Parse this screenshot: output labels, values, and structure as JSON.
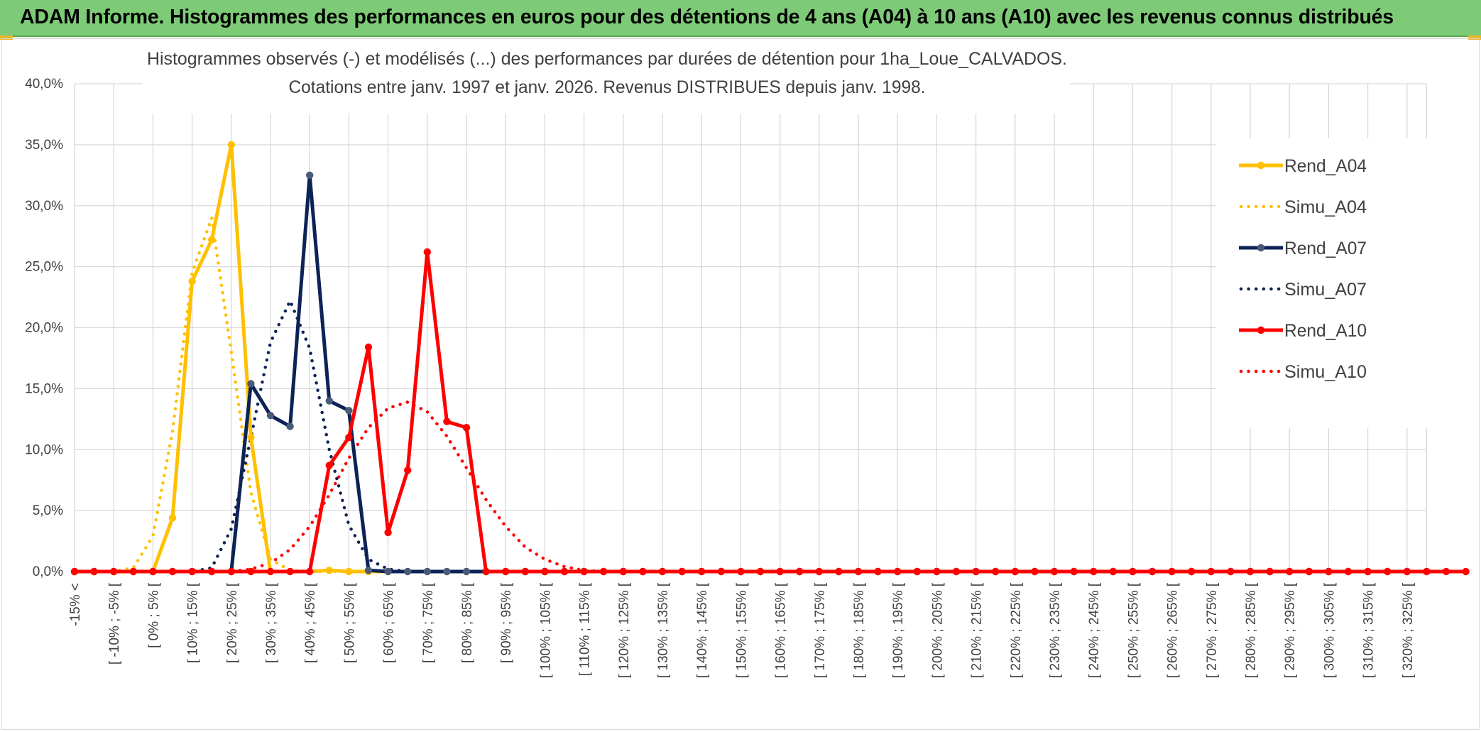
{
  "banner": {
    "title": "ADAM Informe. Histogrammes des performances en euros pour des détentions de 4 ans (A04) à 10 ans (A10) avec les revenus connus distribués"
  },
  "colors": {
    "banner_bg": "#7ecb77",
    "accent": "#e9b52c",
    "A04": "#ffc000",
    "A07": "#0d2357",
    "A10": "#ff0000",
    "grid": "#d9d9d9"
  },
  "chart_data": {
    "type": "line",
    "title_lines": [
      "Histogrammes observés (-) et modélisés (...) des performances par durées de détention pour 1ha_Loue_CALVADOS.",
      "Cotations entre janv. 1997 et janv. 2026. Revenus DISTRIBUES depuis janv. 1998."
    ],
    "ylim": [
      0,
      40
    ],
    "yticks": [
      "0,0%",
      "5,0%",
      "10,0%",
      "15,0%",
      "20,0%",
      "25,0%",
      "30,0%",
      "35,0%",
      "40,0%"
    ],
    "grid": true,
    "legend_position": "right",
    "x_labels": [
      "-15% <",
      "[ -10% ; -5% [",
      "[ 0% ; 5% [",
      "[ 10% ; 15% [",
      "[ 20% ; 25% [",
      "[ 30% ; 35% [",
      "[ 40% ; 45% [",
      "[ 50% ; 55% [",
      "[ 60% ; 65% [",
      "[ 70% ; 75% [",
      "[ 80% ; 85% [",
      "[ 90% ; 95% [",
      "[ 100% ; 105% [",
      "[ 110% ; 115% [",
      "[ 120% ; 125% [",
      "[ 130% ; 135% [",
      "[ 140% ; 145% [",
      "[ 150% ; 155% [",
      "[ 160% ; 165% [",
      "[ 170% ; 175% [",
      "[ 180% ; 185% [",
      "[ 190% ; 195% [",
      "[ 200% ; 205% [",
      "[ 210% ; 215% [",
      "[ 220% ; 225% [",
      "[ 230% ; 235% [",
      "[ 240% ; 245% [",
      "[ 250% ; 255% [",
      "[ 260% ; 265% [",
      "[ 270% ; 275% [",
      "[ 280% ; 285% [",
      "[ 290% ; 295% [",
      "[ 300% ; 305% [",
      "[ 310% ; 315% [",
      "[ 320% ; 325% ["
    ],
    "x_label_step": 2,
    "bins": 70,
    "series": [
      {
        "name": "Rend_A04",
        "style": "solid",
        "color": "#ffc000",
        "values": [
          0,
          0,
          0,
          0,
          0,
          4.4,
          23.8,
          27.2,
          35.0,
          11.0,
          0,
          0,
          0,
          0.1,
          0,
          0,
          0,
          0,
          0,
          0,
          0,
          0,
          0,
          0,
          0,
          0,
          0,
          0,
          0,
          0,
          0,
          0,
          0,
          0,
          0,
          0,
          0,
          0,
          0,
          0,
          0,
          0,
          0,
          0,
          0,
          0,
          0,
          0,
          0,
          0,
          0,
          0,
          0,
          0,
          0,
          0,
          0,
          0,
          0,
          0,
          0,
          0,
          0,
          0,
          0,
          0,
          0,
          0,
          0,
          0
        ]
      },
      {
        "name": "Simu_A04",
        "style": "dotted",
        "color": "#ffc000",
        "values": [
          0,
          0,
          0,
          0.3,
          2.9,
          11.5,
          24.5,
          29.0,
          18.0,
          6.5,
          1.0,
          0.1,
          0,
          0,
          0,
          0,
          0,
          0,
          0,
          0,
          0,
          0,
          0,
          0,
          0,
          0,
          0,
          0,
          0,
          0,
          0,
          0,
          0,
          0,
          0,
          0,
          0,
          0,
          0,
          0,
          0,
          0,
          0,
          0,
          0,
          0,
          0,
          0,
          0,
          0,
          0,
          0,
          0,
          0,
          0,
          0,
          0,
          0,
          0,
          0,
          0,
          0,
          0,
          0,
          0,
          0,
          0,
          0,
          0,
          0
        ]
      },
      {
        "name": "Rend_A07",
        "style": "solid",
        "color": "#0d2357",
        "values": [
          0,
          0,
          0,
          0,
          0,
          0,
          0,
          0,
          0,
          15.4,
          12.8,
          11.9,
          32.5,
          14.0,
          13.2,
          0.1,
          0,
          0,
          0,
          0,
          0,
          0,
          0,
          0,
          0,
          0,
          0,
          0,
          0,
          0,
          0,
          0,
          0,
          0,
          0,
          0,
          0,
          0,
          0,
          0,
          0,
          0,
          0,
          0,
          0,
          0,
          0,
          0,
          0,
          0,
          0,
          0,
          0,
          0,
          0,
          0,
          0,
          0,
          0,
          0,
          0,
          0,
          0,
          0,
          0,
          0,
          0,
          0,
          0,
          0
        ]
      },
      {
        "name": "Simu_A07",
        "style": "dotted",
        "color": "#0d2357",
        "values": [
          0,
          0,
          0,
          0,
          0,
          0,
          0,
          0.3,
          3.5,
          11.0,
          18.8,
          22.2,
          18.3,
          10.0,
          3.8,
          1.0,
          0.2,
          0,
          0,
          0,
          0,
          0,
          0,
          0,
          0,
          0,
          0,
          0,
          0,
          0,
          0,
          0,
          0,
          0,
          0,
          0,
          0,
          0,
          0,
          0,
          0,
          0,
          0,
          0,
          0,
          0,
          0,
          0,
          0,
          0,
          0,
          0,
          0,
          0,
          0,
          0,
          0,
          0,
          0,
          0,
          0,
          0,
          0,
          0,
          0,
          0,
          0,
          0,
          0,
          0
        ]
      },
      {
        "name": "Rend_A10",
        "style": "solid",
        "color": "#ff0000",
        "values": [
          0,
          0,
          0,
          0,
          0,
          0,
          0,
          0,
          0,
          0,
          0,
          0,
          0,
          8.7,
          11.0,
          18.4,
          3.2,
          8.3,
          26.2,
          12.3,
          11.8,
          0,
          0,
          0,
          0,
          0,
          0,
          0,
          0,
          0,
          0,
          0,
          0,
          0,
          0,
          0,
          0,
          0,
          0,
          0,
          0,
          0,
          0,
          0,
          0,
          0,
          0,
          0,
          0,
          0,
          0,
          0,
          0,
          0,
          0,
          0,
          0,
          0,
          0,
          0,
          0,
          0,
          0,
          0,
          0,
          0,
          0,
          0,
          0,
          0,
          0,
          0
        ]
      },
      {
        "name": "Simu_A10",
        "style": "dotted",
        "color": "#ff0000",
        "values": [
          0,
          0,
          0,
          0,
          0,
          0,
          0,
          0,
          0,
          0.2,
          0.7,
          1.8,
          3.7,
          6.3,
          9.3,
          11.8,
          13.4,
          13.9,
          13.1,
          11.1,
          8.5,
          5.9,
          3.7,
          2.0,
          1.0,
          0.4,
          0.1,
          0,
          0,
          0,
          0,
          0,
          0,
          0,
          0,
          0,
          0,
          0,
          0,
          0,
          0,
          0,
          0,
          0,
          0,
          0,
          0,
          0,
          0,
          0,
          0,
          0,
          0,
          0,
          0,
          0,
          0,
          0,
          0,
          0,
          0,
          0,
          0,
          0,
          0,
          0,
          0,
          0,
          0,
          0
        ]
      }
    ]
  }
}
